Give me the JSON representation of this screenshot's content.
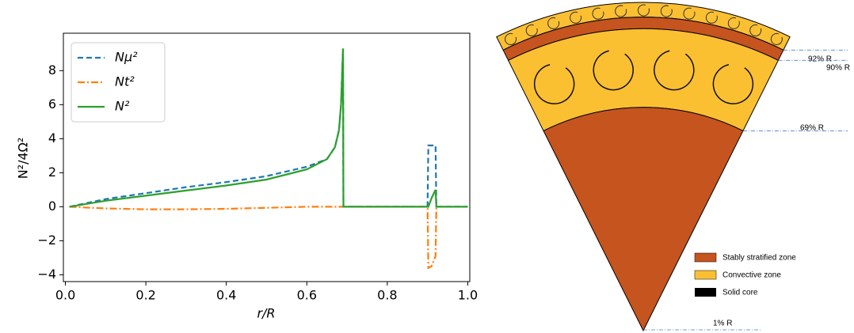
{
  "chart_data": {
    "type": "line",
    "x_label": "r/R",
    "y_label": "N²/4Ω²",
    "x": [
      0.01,
      0.1,
      0.2,
      0.3,
      0.4,
      0.5,
      0.6,
      0.65,
      0.67,
      0.68,
      0.685,
      0.69,
      0.691,
      0.8,
      0.9,
      0.902,
      0.91,
      0.92,
      0.922,
      1.0
    ],
    "series": [
      {
        "name": "Nμ²",
        "color": "#1f77b4",
        "linestyle": "dashed",
        "values": [
          0,
          0.45,
          0.8,
          1.15,
          1.45,
          1.8,
          2.35,
          2.8,
          3.5,
          4.5,
          6,
          9.3,
          0,
          0,
          0,
          3.6,
          3.6,
          3.6,
          0,
          0
        ]
      },
      {
        "name": "Nt²",
        "color": "#ff7f0e",
        "linestyle": "dashdot",
        "values": [
          0,
          -0.1,
          -0.15,
          -0.15,
          -0.12,
          -0.06,
          0,
          0,
          0,
          0,
          0,
          0,
          0,
          0,
          0,
          -3.6,
          -3.5,
          -2.9,
          0,
          null
        ]
      },
      {
        "name": "N²",
        "color": "#2ca02c",
        "linestyle": "solid",
        "values": [
          0,
          0.35,
          0.65,
          0.95,
          1.25,
          1.6,
          2.2,
          2.8,
          3.5,
          4.5,
          6,
          9.3,
          0,
          0,
          0,
          0,
          0.5,
          1,
          0,
          0
        ]
      }
    ],
    "xlim": [
      -0.005,
      1.005
    ],
    "xticks": [
      {
        "value": 0,
        "label": "0.0"
      },
      0.2,
      0.4,
      0.6,
      0.8,
      {
        "value": 1,
        "label": "1.0"
      }
    ],
    "ylim": [
      -4.4,
      10.2
    ],
    "yticks": [
      {
        "value": -4,
        "label": "−4"
      },
      {
        "value": -2,
        "label": "−2"
      },
      0,
      2,
      4,
      6,
      8
    ],
    "legend": "upper left"
  },
  "diagram": {
    "levels": [
      {
        "label": "92% R"
      },
      {
        "label": "90% R"
      },
      {
        "label": "69% R"
      },
      {
        "label": "1% R"
      }
    ],
    "legend": [
      "Stably stratified zone",
      "Convective zone",
      "Solid core"
    ]
  }
}
